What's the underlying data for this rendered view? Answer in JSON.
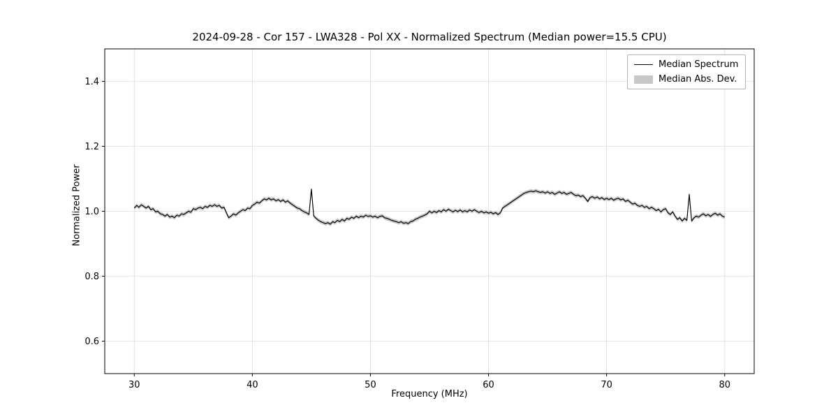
{
  "chart_data": {
    "type": "line",
    "title": "2024-09-28 - Cor 157 - LWA328 - Pol XX - Normalized Spectrum (Median power=15.5 CPU)",
    "xlabel": "Frequency (MHz)",
    "ylabel": "Normalized Power",
    "xlim": [
      27.5,
      82.5
    ],
    "ylim": [
      0.5,
      1.5
    ],
    "xticks": [
      30,
      40,
      50,
      60,
      70,
      80
    ],
    "yticks": [
      0.6,
      0.8,
      1.0,
      1.2,
      1.4
    ],
    "grid": true,
    "grid_color": "#dcdcdc",
    "line_color": "#000000",
    "band_color": "#c8c8c8",
    "mad_band_halfwidth": 0.006,
    "legend": {
      "position": "upper right",
      "entries": [
        {
          "label": "Median Spectrum",
          "type": "line",
          "color": "#000000"
        },
        {
          "label": "Median Abs. Dev.",
          "type": "patch",
          "color": "#c8c8c8"
        }
      ]
    },
    "series": [
      {
        "name": "Median Spectrum",
        "color": "#000000",
        "x_start": 30.0,
        "x_step": 0.2,
        "values": [
          1.01,
          1.018,
          1.012,
          1.02,
          1.015,
          1.01,
          1.015,
          1.005,
          1.008,
          0.998,
          1.0,
          0.992,
          0.99,
          0.985,
          0.99,
          0.982,
          0.985,
          0.98,
          0.988,
          0.985,
          0.992,
          0.99,
          0.995,
          1.0,
          0.997,
          1.008,
          1.005,
          1.01,
          1.012,
          1.008,
          1.015,
          1.012,
          1.018,
          1.015,
          1.02,
          1.015,
          1.018,
          1.01,
          1.012,
          0.995,
          0.98,
          0.985,
          0.992,
          0.988,
          0.995,
          1.0,
          1.005,
          1.002,
          1.01,
          1.008,
          1.018,
          1.022,
          1.028,
          1.025,
          1.032,
          1.038,
          1.035,
          1.04,
          1.035,
          1.038,
          1.032,
          1.036,
          1.03,
          1.035,
          1.028,
          1.032,
          1.025,
          1.02,
          1.015,
          1.01,
          1.008,
          1.002,
          0.998,
          0.995,
          0.99,
          1.068,
          0.985,
          0.978,
          0.972,
          0.968,
          0.965,
          0.962,
          0.965,
          0.96,
          0.968,
          0.965,
          0.972,
          0.968,
          0.975,
          0.97,
          0.978,
          0.975,
          0.982,
          0.978,
          0.985,
          0.98,
          0.985,
          0.982,
          0.988,
          0.984,
          0.986,
          0.982,
          0.985,
          0.98,
          0.984,
          0.986,
          0.98,
          0.978,
          0.975,
          0.972,
          0.97,
          0.968,
          0.965,
          0.968,
          0.963,
          0.965,
          0.962,
          0.968,
          0.97,
          0.975,
          0.978,
          0.982,
          0.985,
          0.988,
          0.992,
          1.0,
          0.995,
          1.0,
          0.996,
          1.002,
          0.998,
          1.005,
          1.0,
          1.006,
          1.002,
          0.998,
          1.003,
          0.999,
          1.004,
          0.998,
          1.002,
          0.998,
          1.004,
          1.0,
          1.005,
          1.0,
          0.996,
          1.0,
          0.995,
          0.998,
          0.994,
          0.997,
          0.992,
          0.996,
          0.99,
          0.995,
          1.01,
          1.015,
          1.02,
          1.025,
          1.03,
          1.035,
          1.04,
          1.045,
          1.05,
          1.055,
          1.058,
          1.06,
          1.062,
          1.06,
          1.063,
          1.06,
          1.058,
          1.06,
          1.056,
          1.06,
          1.055,
          1.058,
          1.052,
          1.056,
          1.06,
          1.055,
          1.058,
          1.052,
          1.055,
          1.058,
          1.052,
          1.048,
          1.05,
          1.045,
          1.048,
          1.04,
          1.03,
          1.042,
          1.045,
          1.04,
          1.044,
          1.038,
          1.042,
          1.036,
          1.04,
          1.036,
          1.04,
          1.034,
          1.038,
          1.04,
          1.035,
          1.038,
          1.03,
          1.034,
          1.028,
          1.022,
          1.025,
          1.018,
          1.015,
          1.018,
          1.012,
          1.015,
          1.008,
          1.012,
          1.008,
          1.002,
          1.006,
          0.998,
          1.005,
          1.008,
          0.995,
          0.99,
          0.998,
          0.985,
          0.975,
          0.98,
          0.97,
          0.978,
          0.972,
          1.052,
          0.97,
          0.98,
          0.985,
          0.982,
          0.988,
          0.992,
          0.986,
          0.99,
          0.984,
          0.99,
          0.994,
          0.988,
          0.992,
          0.985,
          0.982
        ]
      }
    ]
  }
}
